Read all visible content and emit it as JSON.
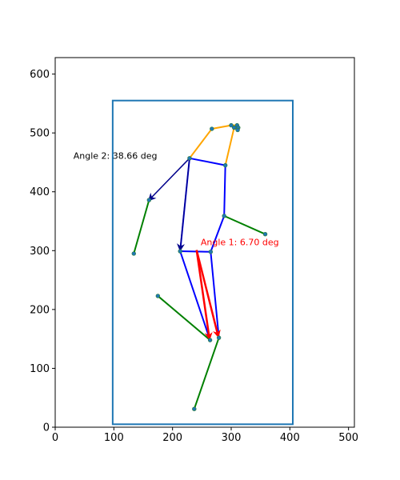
{
  "chart_data": {
    "type": "scatter",
    "title": "",
    "xlabel": "",
    "ylabel": "",
    "xlim": [
      0,
      510
    ],
    "ylim": [
      0,
      628
    ],
    "xticks": [
      0,
      100,
      200,
      300,
      400,
      500
    ],
    "yticks": [
      0,
      100,
      200,
      300,
      400,
      500,
      600
    ],
    "grid": false,
    "bounding_box": {
      "x0": 98,
      "y0": 5,
      "x1": 405,
      "y1": 555,
      "color": "#1f77b4"
    },
    "segment_groups": [
      {
        "color": "#ffa500",
        "points": [
          [
            229,
            457
          ],
          [
            267,
            507
          ],
          [
            300,
            513
          ],
          [
            310,
            513
          ],
          [
            312,
            509
          ],
          [
            311,
            505
          ],
          [
            305,
            509
          ],
          [
            290,
            445
          ]
        ],
        "segments": [
          [
            0,
            1
          ],
          [
            1,
            2
          ],
          [
            2,
            3
          ],
          [
            3,
            4
          ],
          [
            4,
            5
          ],
          [
            5,
            6
          ],
          [
            6,
            7
          ]
        ]
      },
      {
        "color": "#0000ff",
        "points": [
          [
            229,
            457
          ],
          [
            290,
            445
          ],
          [
            288,
            359
          ],
          [
            265,
            298
          ],
          [
            213,
            299
          ],
          [
            264,
            148
          ],
          [
            279,
            152
          ]
        ],
        "segments": [
          [
            0,
            1
          ],
          [
            1,
            2
          ],
          [
            2,
            3
          ],
          [
            3,
            4
          ],
          [
            4,
            0
          ],
          [
            4,
            5
          ],
          [
            3,
            6
          ]
        ]
      },
      {
        "color": "#008000",
        "points": [
          [
            288,
            359
          ],
          [
            358,
            328
          ],
          [
            160,
            386
          ],
          [
            134,
            295
          ],
          [
            175,
            223
          ],
          [
            264,
            148
          ],
          [
            279,
            152
          ],
          [
            237,
            31
          ]
        ],
        "segments": [
          [
            0,
            1
          ],
          [
            2,
            3
          ],
          [
            4,
            5
          ],
          [
            6,
            7
          ]
        ]
      }
    ],
    "points": [
      [
        229,
        457
      ],
      [
        267,
        507
      ],
      [
        300,
        513
      ],
      [
        310,
        513
      ],
      [
        312,
        509
      ],
      [
        311,
        505
      ],
      [
        305,
        509
      ],
      [
        290,
        445
      ],
      [
        288,
        359
      ],
      [
        358,
        328
      ],
      [
        265,
        298
      ],
      [
        213,
        299
      ],
      [
        160,
        386
      ],
      [
        134,
        295
      ],
      [
        175,
        223
      ],
      [
        264,
        148
      ],
      [
        279,
        152
      ],
      [
        237,
        31
      ]
    ],
    "point_color": "#1f77b4",
    "arrows": [
      {
        "from": [
          229,
          457
        ],
        "to": [
          160,
          386
        ],
        "color": "#00008b"
      },
      {
        "from": [
          229,
          457
        ],
        "to": [
          213,
          301
        ],
        "color": "#00008b"
      },
      {
        "from": [
          241,
          301
        ],
        "to": [
          263,
          150
        ],
        "color": "#ff0000"
      },
      {
        "from": [
          241,
          301
        ],
        "to": [
          278,
          154
        ],
        "color": "#ff0000"
      }
    ],
    "annotations": [
      {
        "text": "Angle 1: 6.70 deg",
        "x": 248,
        "y": 309,
        "color": "#ff0000"
      },
      {
        "text": "Angle 2: 38.66 deg",
        "x": 31,
        "y": 456,
        "color": "#000000"
      }
    ]
  }
}
